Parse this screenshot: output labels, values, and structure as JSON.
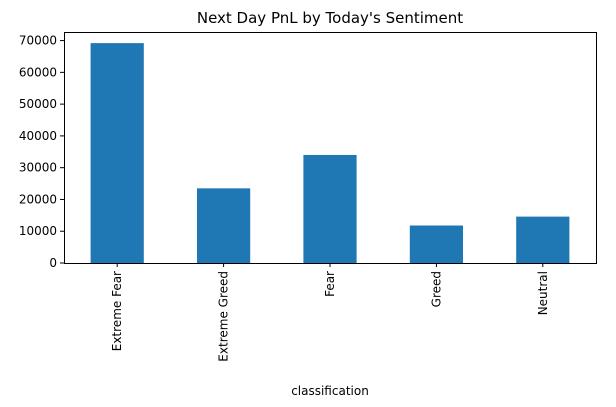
{
  "chart_data": {
    "type": "bar",
    "title": "Next Day PnL by Today's Sentiment",
    "xlabel": "classification",
    "ylabel": "",
    "categories": [
      "Extreme Fear",
      "Extreme Greed",
      "Fear",
      "Greed",
      "Neutral"
    ],
    "values": [
      69200,
      23500,
      34000,
      11800,
      14600
    ],
    "ylim": [
      0,
      72700
    ],
    "yticks": [
      0,
      10000,
      20000,
      30000,
      40000,
      50000,
      60000,
      70000
    ],
    "ytick_labels": [
      "0",
      "10000",
      "20000",
      "30000",
      "40000",
      "50000",
      "60000",
      "70000"
    ],
    "grid": false,
    "legend": "none",
    "colors": {
      "bar": "#1f77b4"
    }
  }
}
